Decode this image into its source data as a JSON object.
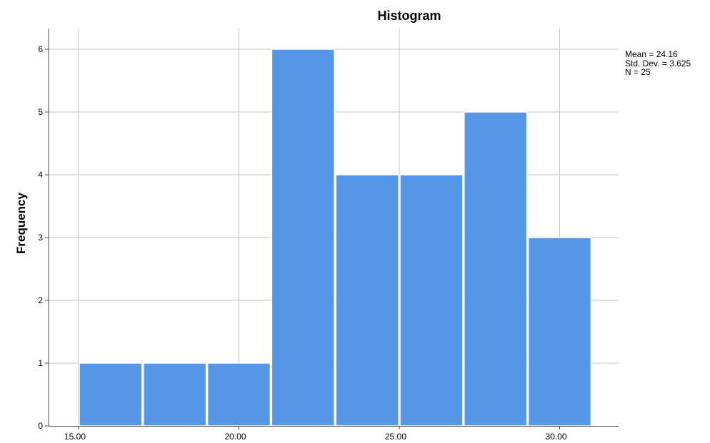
{
  "chart_data": {
    "type": "bar",
    "title": "Histogram",
    "xlabel": "",
    "ylabel": "Frequency",
    "bins": [
      {
        "start": 15.0,
        "end": 17.0,
        "count": 1
      },
      {
        "start": 17.0,
        "end": 19.0,
        "count": 1
      },
      {
        "start": 19.0,
        "end": 21.0,
        "count": 1
      },
      {
        "start": 21.0,
        "end": 23.0,
        "count": 6
      },
      {
        "start": 23.0,
        "end": 25.0,
        "count": 4
      },
      {
        "start": 25.0,
        "end": 27.0,
        "count": 4
      },
      {
        "start": 27.0,
        "end": 29.0,
        "count": 5
      },
      {
        "start": 29.0,
        "end": 31.0,
        "count": 3
      }
    ],
    "xticks": [
      "15.00",
      "20.00",
      "25.00",
      "30.00"
    ],
    "yticks": [
      "0",
      "1",
      "2",
      "3",
      "4",
      "5",
      "6"
    ],
    "ylim": [
      0,
      6
    ],
    "xlim": [
      15.0,
      31.0
    ],
    "grid": true,
    "bar_color": "#5596e6",
    "stats": {
      "mean": "Mean = 24.16",
      "std_dev": "Std. Dev. = 3.625",
      "n": "N = 25"
    }
  }
}
